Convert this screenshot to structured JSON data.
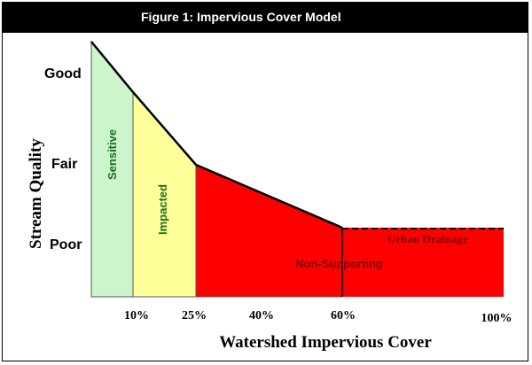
{
  "title": "Figure 1: Impervious Cover Model",
  "chart_data": {
    "type": "area",
    "title": "Figure 1: Impervious Cover Model",
    "xlabel": "Watershed Impervious Cover",
    "ylabel": "Stream Quality",
    "xlim": [
      0,
      100
    ],
    "y_categories": [
      "Poor",
      "Fair",
      "Good"
    ],
    "x_ticks": [
      "10%",
      "25%",
      "40%",
      "60%",
      "100%"
    ],
    "line": [
      {
        "x": 0,
        "y": "above Good"
      },
      {
        "x": 10,
        "y": "Good"
      },
      {
        "x": 25,
        "y": "Fair"
      },
      {
        "x": 60,
        "y": "Poor"
      },
      {
        "x": 100,
        "y": "Poor"
      }
    ],
    "zones": [
      {
        "label": "Sensitive",
        "from": 0,
        "to": 10,
        "color": "#ccf5cc"
      },
      {
        "label": "Impacted",
        "from": 10,
        "to": 25,
        "color": "#ffff99"
      },
      {
        "label": "Non-Supporting",
        "from": 25,
        "to": 100,
        "color": "#ff0000"
      },
      {
        "label": "Urban Drainage",
        "from": 60,
        "to": 100,
        "color": "#ff0000"
      }
    ]
  }
}
